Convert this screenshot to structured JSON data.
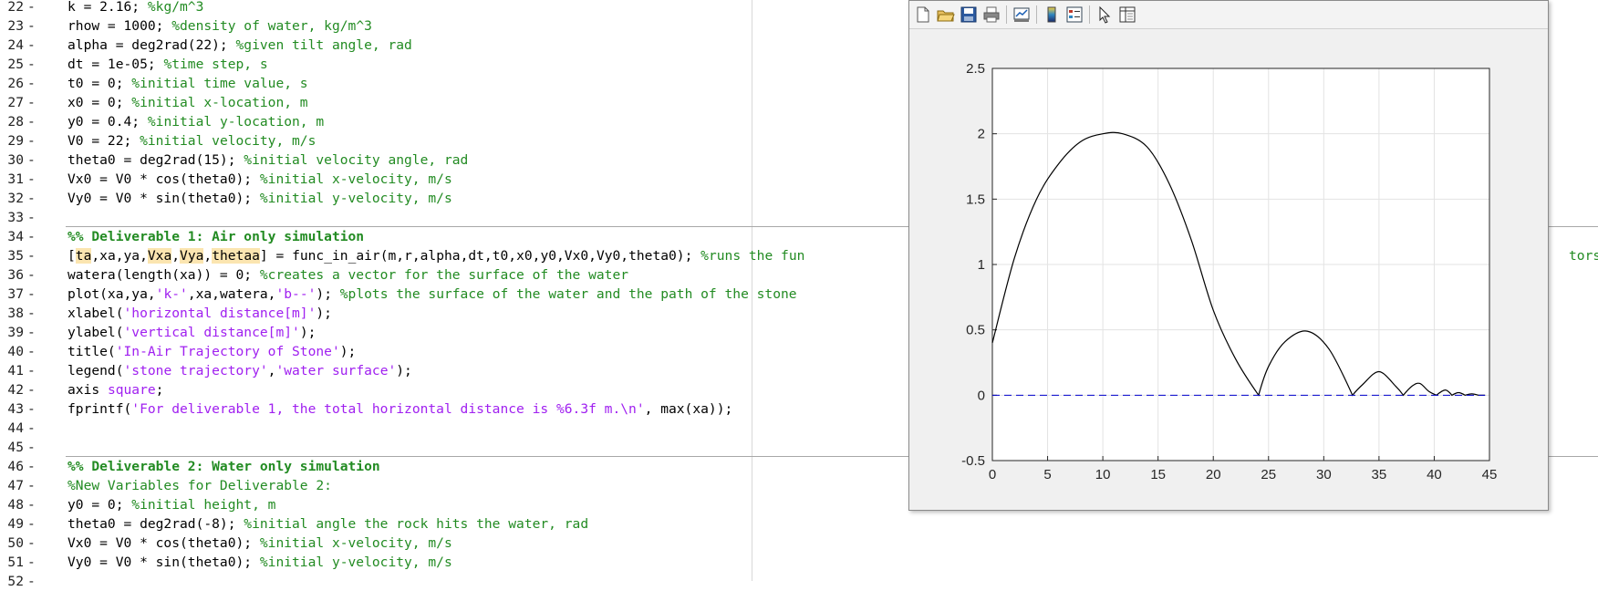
{
  "editor": {
    "lines": [
      {
        "n": "22",
        "parts": [
          {
            "t": "k = 2.16; "
          },
          {
            "t": "%kg/m^3",
            "c": "cmt"
          }
        ]
      },
      {
        "n": "23",
        "parts": [
          {
            "t": "rhow = 1000; "
          },
          {
            "t": "%density of water, kg/m^3",
            "c": "cmt"
          }
        ]
      },
      {
        "n": "24",
        "parts": [
          {
            "t": "alpha = deg2rad(22); "
          },
          {
            "t": "%given tilt angle, rad",
            "c": "cmt"
          }
        ]
      },
      {
        "n": "25",
        "parts": [
          {
            "t": "dt = 1e-05; "
          },
          {
            "t": "%time step, s",
            "c": "cmt"
          }
        ]
      },
      {
        "n": "26",
        "parts": [
          {
            "t": "t0 = 0; "
          },
          {
            "t": "%initial time value, s",
            "c": "cmt"
          }
        ]
      },
      {
        "n": "27",
        "parts": [
          {
            "t": "x0 = 0; "
          },
          {
            "t": "%initial x-location, m",
            "c": "cmt"
          }
        ]
      },
      {
        "n": "28",
        "parts": [
          {
            "t": "y0 = 0.4; "
          },
          {
            "t": "%initial y-location, m",
            "c": "cmt"
          }
        ]
      },
      {
        "n": "29",
        "parts": [
          {
            "t": "V0 = 22; "
          },
          {
            "t": "%initial velocity, m/s",
            "c": "cmt"
          }
        ]
      },
      {
        "n": "30",
        "parts": [
          {
            "t": "theta0 = deg2rad(15); "
          },
          {
            "t": "%initial velocity angle, rad",
            "c": "cmt"
          }
        ]
      },
      {
        "n": "31",
        "parts": [
          {
            "t": "Vx0 = V0 * cos(theta0); "
          },
          {
            "t": "%initial x-velocity, m/s",
            "c": "cmt"
          }
        ]
      },
      {
        "n": "32",
        "parts": [
          {
            "t": "Vy0 = V0 * sin(theta0); "
          },
          {
            "t": "%initial y-velocity, m/s",
            "c": "cmt"
          }
        ]
      },
      {
        "n": "33",
        "parts": []
      },
      {
        "n": "34",
        "section": true,
        "parts": [
          {
            "t": "%% Deliverable 1: Air only simulation",
            "c": "sec"
          }
        ]
      },
      {
        "n": "35",
        "parts": [
          {
            "t": "["
          },
          {
            "t": "ta",
            "c": "hl"
          },
          {
            "t": ",xa,ya,"
          },
          {
            "t": "Vxa",
            "c": "hl"
          },
          {
            "t": ","
          },
          {
            "t": "Vya",
            "c": "hl"
          },
          {
            "t": ","
          },
          {
            "t": "thetaa",
            "c": "hl"
          },
          {
            "t": "] = func_in_air(m,r,alpha,dt,t0,x0,y0,Vx0,Vy0,theta0); "
          },
          {
            "t": "%runs the fun",
            "c": "cmt"
          }
        ]
      },
      {
        "n": "36",
        "parts": [
          {
            "t": "watera(length(xa)) = 0; "
          },
          {
            "t": "%creates a vector for the surface of the water",
            "c": "cmt"
          }
        ]
      },
      {
        "n": "37",
        "parts": [
          {
            "t": "plot(xa,ya,"
          },
          {
            "t": "'k-'",
            "c": "str"
          },
          {
            "t": ",xa,watera,"
          },
          {
            "t": "'b--'",
            "c": "str"
          },
          {
            "t": "); "
          },
          {
            "t": "%plots the surface of the water and the path of the stone ",
            "c": "cmt"
          }
        ]
      },
      {
        "n": "38",
        "parts": [
          {
            "t": "xlabel("
          },
          {
            "t": "'horizontal distance[m]'",
            "c": "str"
          },
          {
            "t": ");"
          }
        ]
      },
      {
        "n": "39",
        "parts": [
          {
            "t": "ylabel("
          },
          {
            "t": "'vertical distance[m]'",
            "c": "str"
          },
          {
            "t": ");"
          }
        ]
      },
      {
        "n": "40",
        "parts": [
          {
            "t": "title("
          },
          {
            "t": "'In-Air Trajectory of Stone'",
            "c": "str"
          },
          {
            "t": ");"
          }
        ]
      },
      {
        "n": "41",
        "parts": [
          {
            "t": "legend("
          },
          {
            "t": "'stone trajectory'",
            "c": "str"
          },
          {
            "t": ","
          },
          {
            "t": "'water surface'",
            "c": "str"
          },
          {
            "t": ");"
          }
        ]
      },
      {
        "n": "42",
        "parts": [
          {
            "t": "axis "
          },
          {
            "t": "square",
            "c": "kw"
          },
          {
            "t": ";"
          }
        ]
      },
      {
        "n": "43",
        "parts": [
          {
            "t": "fprintf("
          },
          {
            "t": "'For deliverable 1, the total horizontal distance is %6.3f m.\\n'",
            "c": "str"
          },
          {
            "t": ", max(xa));"
          }
        ]
      },
      {
        "n": "44",
        "parts": []
      },
      {
        "n": "45",
        "parts": []
      },
      {
        "n": "46",
        "section": true,
        "parts": [
          {
            "t": "%% Deliverable 2: Water only simulation",
            "c": "sec"
          }
        ]
      },
      {
        "n": "47",
        "parts": [
          {
            "t": "%New Variables for Deliverable 2:",
            "c": "cmt"
          }
        ]
      },
      {
        "n": "48",
        "parts": [
          {
            "t": "y0 = 0; "
          },
          {
            "t": "%initial height, m",
            "c": "cmt"
          }
        ]
      },
      {
        "n": "49",
        "parts": [
          {
            "t": "theta0 = deg2rad(-8); "
          },
          {
            "t": "%initial angle the rock hits the water, rad",
            "c": "cmt"
          }
        ]
      },
      {
        "n": "50",
        "parts": [
          {
            "t": "Vx0 = V0 * cos(theta0); "
          },
          {
            "t": "%initial x-velocity, m/s",
            "c": "cmt"
          }
        ]
      },
      {
        "n": "51",
        "parts": [
          {
            "t": "Vy0 = V0 * sin(theta0); "
          },
          {
            "t": "%initial y-velocity, m/s",
            "c": "cmt"
          }
        ]
      },
      {
        "n": "52",
        "parts": []
      }
    ],
    "line35_overflow": "tors"
  },
  "figure": {
    "toolbar_icons": [
      "new-figure-icon",
      "open-file-icon",
      "save-icon",
      "print-icon",
      "link-plot-icon",
      "insert-colorbar-icon",
      "insert-legend-icon",
      "edit-plot-icon",
      "property-inspector-icon"
    ]
  },
  "chart_data": {
    "type": "line",
    "title": "",
    "xlabel": "",
    "ylabel": "",
    "xlim": [
      0,
      45
    ],
    "ylim": [
      -0.5,
      2.5
    ],
    "xticks": [
      "0",
      "5",
      "10",
      "15",
      "20",
      "25",
      "30",
      "35",
      "40",
      "45"
    ],
    "yticks": [
      "-0.5",
      "0",
      "0.5",
      "1",
      "1.5",
      "2",
      "2.5"
    ],
    "grid": true,
    "series": [
      {
        "style": "solid",
        "color": "#000000",
        "x": [
          0,
          2,
          4,
          6,
          8,
          10,
          11.8,
          14,
          16,
          18,
          20,
          22,
          24.1,
          25,
          26.5,
          28.5,
          30.5,
          32.6,
          33.5,
          35,
          36.5,
          37.2,
          38,
          38.7,
          39.5,
          40.2,
          41,
          41.6,
          42.2,
          42.8,
          43.4,
          44,
          44.6
        ],
        "y": [
          0.4,
          1.05,
          1.5,
          1.77,
          1.94,
          2.0,
          2.0,
          1.9,
          1.62,
          1.19,
          0.65,
          0.28,
          0,
          0.22,
          0.41,
          0.49,
          0.35,
          0,
          0.08,
          0.18,
          0.07,
          0,
          0.07,
          0.09,
          0.03,
          0,
          0.04,
          0,
          0.02,
          0,
          0.01,
          0,
          0
        ]
      },
      {
        "style": "dashed",
        "color": "#0000cc",
        "x": [
          0,
          44.6
        ],
        "y": [
          0,
          0
        ]
      }
    ]
  }
}
